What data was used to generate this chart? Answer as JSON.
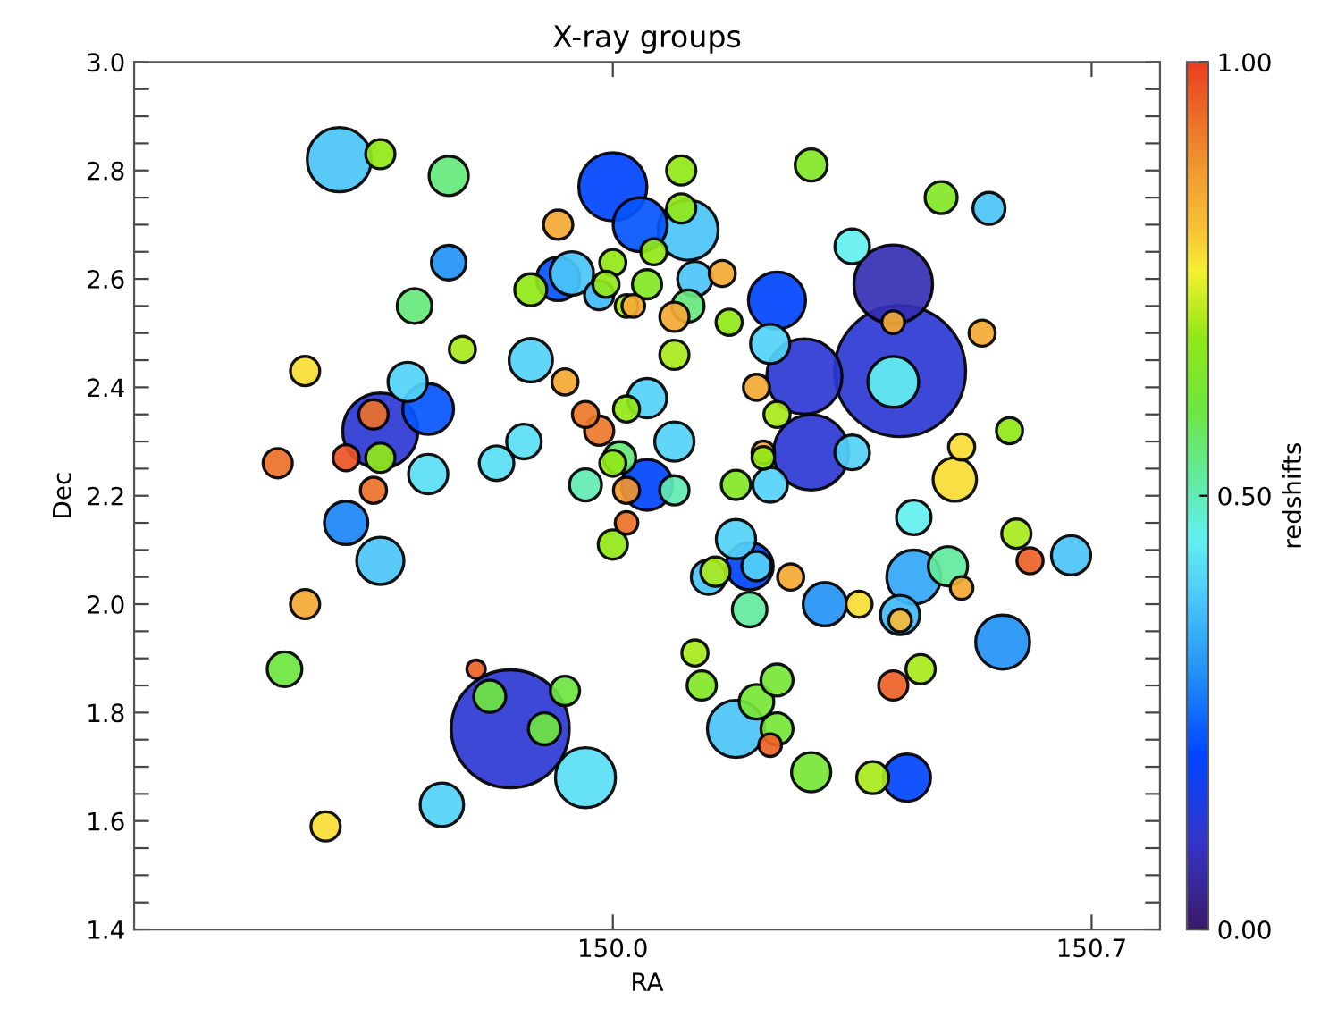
{
  "chart_data": {
    "type": "bubble",
    "title": "X-ray groups",
    "xlabel": "RA",
    "ylabel": "Dec",
    "clabel": "redshifts",
    "xlim": [
      149.3,
      150.8
    ],
    "ylim": [
      1.4,
      3.0
    ],
    "xticks": [
      {
        "value": 150.0,
        "label": "150.0"
      },
      {
        "value": 150.7,
        "label": "150.7"
      }
    ],
    "yticks": [
      {
        "value": 1.4,
        "label": "1.4"
      },
      {
        "value": 1.45,
        "label": null
      },
      {
        "value": 1.5,
        "label": null
      },
      {
        "value": 1.55,
        "label": null
      },
      {
        "value": 1.6,
        "label": "1.6"
      },
      {
        "value": 1.65,
        "label": null
      },
      {
        "value": 1.7,
        "label": null
      },
      {
        "value": 1.75,
        "label": null
      },
      {
        "value": 1.8,
        "label": "1.8"
      },
      {
        "value": 1.85,
        "label": null
      },
      {
        "value": 1.9,
        "label": null
      },
      {
        "value": 1.95,
        "label": null
      },
      {
        "value": 2.0,
        "label": "2.0"
      },
      {
        "value": 2.05,
        "label": null
      },
      {
        "value": 2.1,
        "label": null
      },
      {
        "value": 2.15,
        "label": null
      },
      {
        "value": 2.2,
        "label": "2.2"
      },
      {
        "value": 2.25,
        "label": null
      },
      {
        "value": 2.3,
        "label": null
      },
      {
        "value": 2.35,
        "label": null
      },
      {
        "value": 2.4,
        "label": "2.4"
      },
      {
        "value": 2.45,
        "label": null
      },
      {
        "value": 2.5,
        "label": null
      },
      {
        "value": 2.55,
        "label": null
      },
      {
        "value": 2.6,
        "label": "2.6"
      },
      {
        "value": 2.65,
        "label": null
      },
      {
        "value": 2.7,
        "label": null
      },
      {
        "value": 2.75,
        "label": null
      },
      {
        "value": 2.8,
        "label": "2.8"
      },
      {
        "value": 2.85,
        "label": null
      },
      {
        "value": 2.9,
        "label": null
      },
      {
        "value": 2.95,
        "label": null
      },
      {
        "value": 3.0,
        "label": "3.0"
      }
    ],
    "clim": [
      0,
      1
    ],
    "cticks": [
      {
        "value": 0,
        "label": "0.00"
      },
      {
        "value": 0.5,
        "label": "0.50"
      },
      {
        "value": 1,
        "label": "1.00"
      }
    ],
    "grid": false,
    "marker": "circle",
    "x": [
      149.6,
      149.66,
      149.76,
      150.0,
      150.04,
      149.92,
      149.76,
      150.0,
      149.92,
      149.94,
      149.88,
      149.99,
      149.98,
      150.02,
      150.03,
      150.05,
      150.06,
      149.71,
      149.78,
      149.55,
      149.88,
      149.93,
      149.7,
      149.73,
      149.66,
      149.65,
      149.51,
      149.61,
      149.66,
      149.73,
      149.83,
      149.87,
      149.96,
      149.98,
      150.01,
      150.0,
      150.02,
      150.05,
      149.65,
      149.96,
      150.02,
      150.05,
      149.61,
      149.66,
      149.55,
      149.52,
      149.8,
      149.85,
      149.82,
      149.93,
      149.9,
      149.96,
      149.75,
      149.58,
      150.02,
      150.0,
      150.1,
      150.29,
      150.48,
      150.55,
      150.11,
      150.1,
      150.35,
      150.41,
      150.12,
      150.16,
      150.11,
      150.09,
      150.24,
      150.41,
      150.54,
      150.17,
      150.09,
      150.23,
      150.28,
      150.41,
      150.21,
      150.24,
      150.29,
      150.35,
      150.22,
      150.22,
      150.58,
      150.51,
      150.5,
      150.09,
      150.09,
      150.18,
      150.23,
      150.44,
      150.59,
      150.61,
      150.67,
      150.44,
      150.49,
      150.51,
      150.31,
      150.36,
      150.42,
      150.42,
      150.57,
      150.26,
      150.18,
      150.2,
      150.21,
      150.14,
      150.15,
      150.2,
      150.12,
      150.13,
      150.24,
      150.21,
      150.18,
      150.24,
      150.23,
      150.29,
      150.38,
      150.43,
      150.41,
      150.45,
      150.42
    ],
    "values": [
      2.82,
      2.83,
      2.79,
      2.77,
      2.7,
      2.7,
      2.63,
      2.63,
      2.6,
      2.61,
      2.58,
      2.59,
      2.57,
      2.55,
      2.55,
      2.59,
      2.65,
      2.55,
      2.47,
      2.43,
      2.45,
      2.41,
      2.41,
      2.36,
      2.32,
      2.35,
      2.26,
      2.27,
      2.27,
      2.24,
      2.26,
      2.3,
      2.35,
      2.32,
      2.27,
      2.26,
      2.36,
      2.38,
      2.21,
      2.22,
      2.21,
      2.22,
      2.15,
      2.08,
      2.0,
      1.88,
      1.88,
      1.77,
      1.83,
      1.84,
      1.77,
      1.68,
      1.63,
      1.59,
      2.15,
      2.11,
      2.8,
      2.81,
      2.75,
      2.73,
      2.69,
      2.73,
      2.66,
      2.59,
      2.6,
      2.61,
      2.55,
      2.53,
      2.56,
      2.52,
      2.5,
      2.52,
      2.46,
      2.48,
      2.42,
      2.41,
      2.4,
      2.35,
      2.28,
      2.28,
      2.28,
      2.27,
      2.32,
      2.29,
      2.23,
      2.3,
      2.21,
      2.22,
      2.22,
      2.16,
      2.13,
      2.08,
      2.09,
      2.05,
      2.07,
      2.03,
      2.0,
      2.0,
      1.98,
      1.97,
      1.93,
      2.05,
      2.12,
      2.07,
      2.07,
      2.05,
      2.06,
      1.99,
      1.91,
      1.85,
      1.86,
      1.82,
      1.77,
      1.77,
      1.74,
      1.69,
      1.68,
      1.68,
      1.85,
      1.88,
      2.43
    ],
    "sizes": [
      0.24,
      0.05,
      0.09,
      0.27,
      0.17,
      0.05,
      0.07,
      0.04,
      0.11,
      0.11,
      0.06,
      0.04,
      0.05,
      0.03,
      0.03,
      0.05,
      0.04,
      0.07,
      0.04,
      0.05,
      0.11,
      0.04,
      0.09,
      0.15,
      0.33,
      0.05,
      0.05,
      0.04,
      0.05,
      0.09,
      0.07,
      0.07,
      0.04,
      0.05,
      0.06,
      0.04,
      0.04,
      0.09,
      0.04,
      0.06,
      0.04,
      0.15,
      0.11,
      0.13,
      0.05,
      0.07,
      0.02,
      0.81,
      0.06,
      0.05,
      0.06,
      0.21,
      0.11,
      0.05,
      0.03,
      0.05,
      0.05,
      0.06,
      0.06,
      0.06,
      0.21,
      0.05,
      0.07,
      0.36,
      0.07,
      0.04,
      0.06,
      0.05,
      0.19,
      0.03,
      0.04,
      0.04,
      0.05,
      0.09,
      0.33,
      0.15,
      0.04,
      0.04,
      0.33,
      0.07,
      0.03,
      0.03,
      0.04,
      0.04,
      0.11,
      0.09,
      0.05,
      0.05,
      0.07,
      0.07,
      0.05,
      0.04,
      0.09,
      0.17,
      0.09,
      0.03,
      0.11,
      0.04,
      0.09,
      0.03,
      0.17,
      0.04,
      0.09,
      0.13,
      0.05,
      0.07,
      0.05,
      0.07,
      0.04,
      0.05,
      0.06,
      0.07,
      0.19,
      0.06,
      0.03,
      0.09,
      0.06,
      0.13,
      0.05,
      0.05,
      1
    ],
    "cvalues": [
      0.38,
      0.68,
      0.55,
      0.2,
      0.22,
      0.85,
      0.3,
      0.68,
      0.22,
      0.38,
      0.68,
      0.68,
      0.36,
      0.7,
      0.85,
      0.65,
      0.68,
      0.55,
      0.7,
      0.78,
      0.4,
      0.85,
      0.4,
      0.22,
      0.12,
      0.93,
      0.93,
      0.97,
      0.68,
      0.42,
      0.42,
      0.42,
      0.92,
      0.92,
      0.55,
      0.68,
      0.68,
      0.4,
      0.93,
      0.5,
      0.88,
      0.2,
      0.28,
      0.38,
      0.85,
      0.6,
      0.95,
      0.12,
      0.6,
      0.6,
      0.6,
      0.42,
      0.4,
      0.78,
      0.93,
      0.68,
      0.68,
      0.65,
      0.65,
      0.38,
      0.38,
      0.68,
      0.45,
      0.08,
      0.38,
      0.85,
      0.55,
      0.85,
      0.2,
      0.85,
      0.85,
      0.68,
      0.7,
      0.4,
      0.12,
      0.45,
      0.85,
      0.7,
      0.12,
      0.4,
      0.85,
      0.68,
      0.68,
      0.78,
      0.78,
      0.4,
      0.5,
      0.65,
      0.4,
      0.45,
      0.7,
      0.95,
      0.38,
      0.33,
      0.52,
      0.85,
      0.3,
      0.78,
      0.36,
      0.82,
      0.3,
      0.85,
      0.4,
      0.2,
      0.4,
      0.38,
      0.7,
      0.52,
      0.7,
      0.65,
      0.62,
      0.62,
      0.38,
      0.62,
      0.95,
      0.62,
      0.7,
      0.2,
      0.95,
      0.7,
      0.12
    ]
  }
}
